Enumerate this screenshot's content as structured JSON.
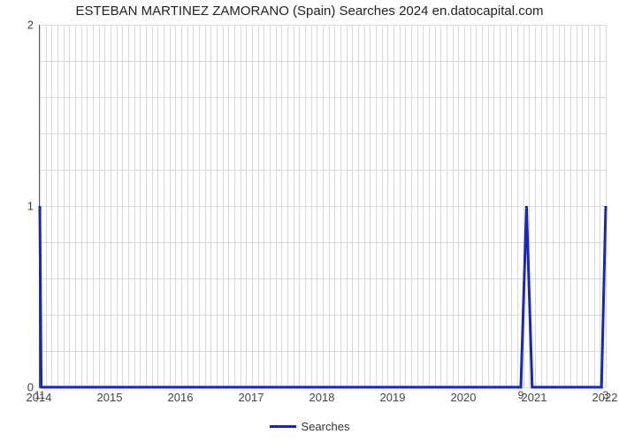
{
  "chart": {
    "type": "line",
    "title": "ESTEBAN MARTINEZ ZAMORANO (Spain) Searches 2024 en.datocapital.com",
    "title_fontsize": 15,
    "background_color": "#ffffff",
    "grid_color": "#d9d9d9",
    "axis_color": "#555555",
    "line_color": "#1525c8",
    "line_width": 3,
    "xlim": [
      2014,
      2022
    ],
    "ylim": [
      0,
      2
    ],
    "x_ticks": [
      2014,
      2015,
      2016,
      2017,
      2018,
      2019,
      2020,
      2021,
      2022
    ],
    "y_ticks": [
      0,
      1,
      2
    ],
    "minor_x_per_year": 12,
    "minor_y_count": 10,
    "series": [
      {
        "name": "Searches",
        "points": [
          {
            "x": 2014.0,
            "y": 1.0,
            "label": "11",
            "label_dy": 14
          },
          {
            "x": 2014.02,
            "y": 0.0
          },
          {
            "x": 2020.8,
            "y": 0.0,
            "label": "9",
            "label_dy": 14
          },
          {
            "x": 2020.88,
            "y": 1.0
          },
          {
            "x": 2020.96,
            "y": 0.0
          },
          {
            "x": 2021.94,
            "y": 0.0
          },
          {
            "x": 2022.0,
            "y": 1.0,
            "label": "3",
            "label_dy": 14
          }
        ]
      }
    ],
    "legend": {
      "label": "Searches"
    },
    "tick_fontsize": 13,
    "label_fontsize": 12
  }
}
